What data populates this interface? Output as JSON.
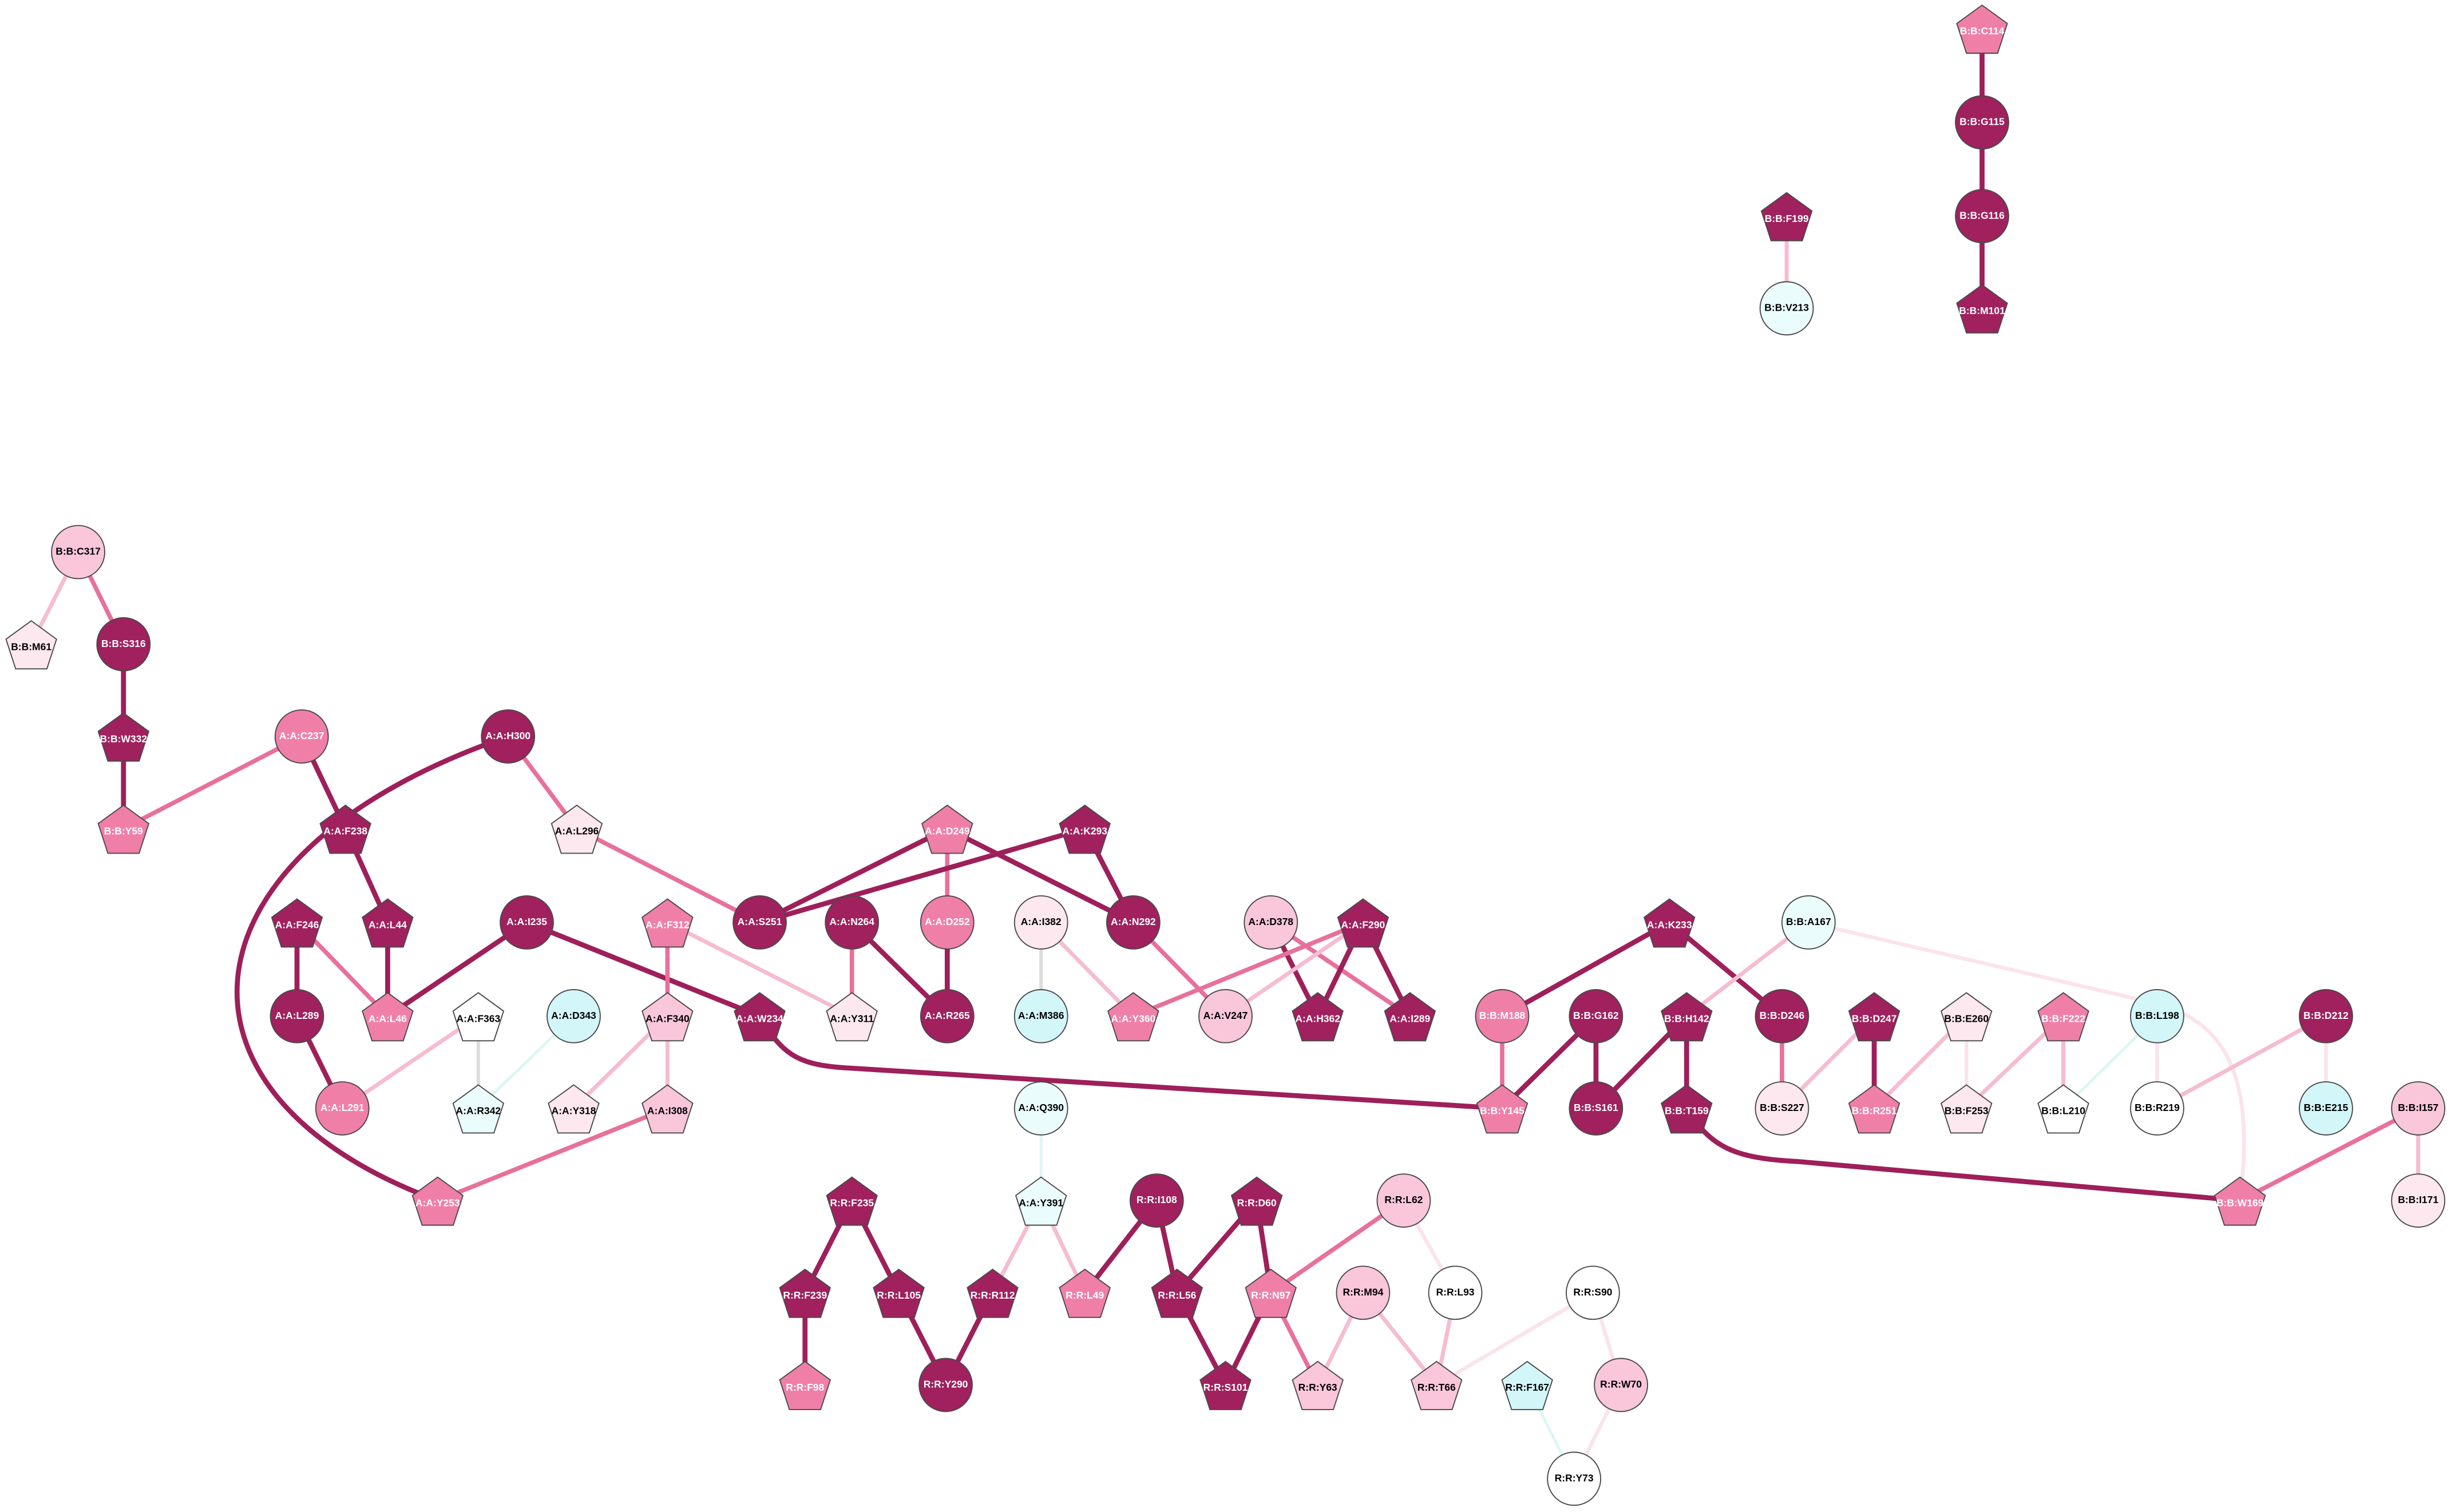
{
  "nodes": [
    "B:B:C114",
    "B:B:G115",
    "B:B:G116",
    "B:B:M101",
    "B:B:F199",
    "B:B:V213",
    "B:B:C317",
    "B:B:M61",
    "B:B:S316",
    "B:B:W332",
    "B:B:Y59",
    "A:A:C237",
    "A:A:F238",
    "A:A:L44",
    "A:A:H300",
    "A:A:L296",
    "A:A:F246",
    "A:A:L289",
    "A:A:L46",
    "A:A:L291",
    "A:A:I235",
    "A:A:F312",
    "A:A:F363",
    "A:A:R342",
    "A:A:D343",
    "A:A:F340",
    "A:A:Y318",
    "A:A:I308",
    "A:A:Y253",
    "A:A:W234",
    "A:A:D249",
    "A:A:K293",
    "A:A:S251",
    "A:A:N264",
    "A:A:D252",
    "A:A:Y311",
    "A:A:R265",
    "A:A:I382",
    "A:A:M386",
    "A:A:N292",
    "A:A:Y360",
    "A:A:D378",
    "A:A:V247",
    "A:A:F290",
    "A:A:H362",
    "A:A:I289",
    "A:A:Q390",
    "A:A:Y391",
    "R:R:F235",
    "R:R:F239",
    "R:R:F98",
    "R:R:L105",
    "R:R:R112",
    "R:R:Y290",
    "R:R:L49",
    "R:R:I108",
    "R:R:D60",
    "R:R:L56",
    "R:R:N97",
    "R:R:S101",
    "R:R:L62",
    "R:R:M94",
    "R:R:Y63",
    "R:R:L93",
    "R:R:T66",
    "R:R:S90",
    "R:R:W70",
    "R:R:F167",
    "R:R:Y73",
    "A:A:K233",
    "B:B:A167",
    "B:B:M188",
    "B:B:G162",
    "B:B:H142",
    "B:B:D246",
    "B:B:D247",
    "B:B:E260",
    "B:B:F222",
    "B:B:L198",
    "B:B:D212",
    "B:B:I157",
    "B:B:Y145",
    "B:B:S161",
    "B:B:T159",
    "B:B:S227",
    "B:B:R251",
    "B:B:F253",
    "B:B:L210",
    "B:B:R219",
    "B:B:E215",
    "B:B:W169",
    "B:B:I171"
  ]
}
